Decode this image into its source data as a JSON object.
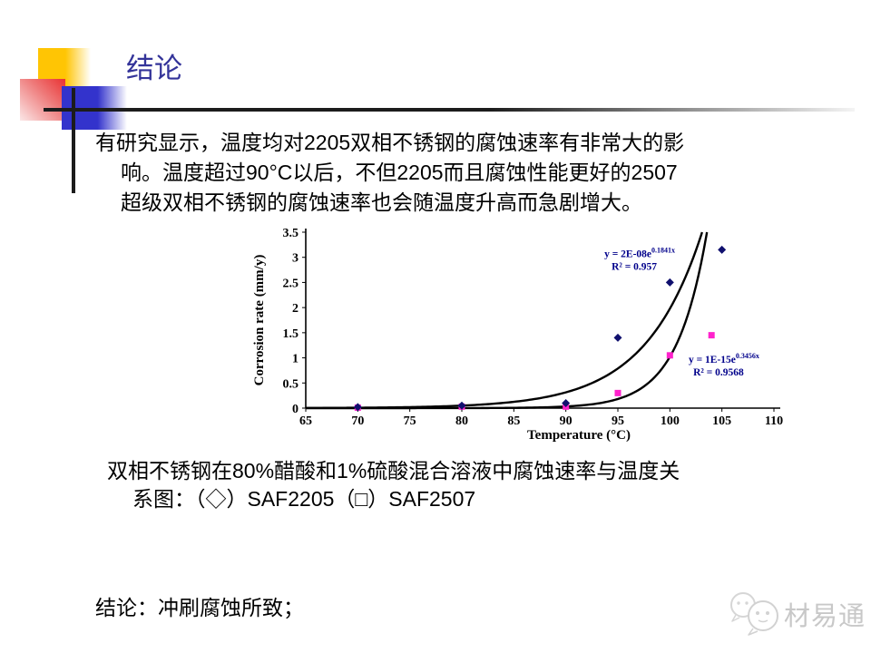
{
  "slide": {
    "title": "结论",
    "paragraph_lines": [
      "有研究显示，温度均对2205双相不锈钢的腐蚀速率有非常大的影",
      "响。温度超过90°C以后，不但2205而且腐蚀性能更好的2507",
      "超级双相不锈钢的腐蚀速率也会随温度升高而急剧增大。"
    ],
    "caption_lines": [
      "双相不锈钢在80%醋酸和1%硫酸混合溶液中腐蚀速率与温度关",
      "系图：（◇）SAF2205（□）SAF2507"
    ],
    "conclusion": "结论：冲刷腐蚀所致；"
  },
  "logo": {
    "text": "材易通"
  },
  "colors": {
    "title": "#333399",
    "accent_yellow": "#FFC504",
    "accent_blue": "#3333CC",
    "accent_red": "#E93232",
    "equation": "#00008B"
  },
  "chart_data": {
    "type": "scatter",
    "title": "",
    "xlabel": "Temperature (°C)",
    "ylabel": "Corrosion rate (mm/y)",
    "xlim": [
      65,
      110
    ],
    "ylim": [
      0,
      3.5
    ],
    "xticks": [
      65,
      70,
      75,
      80,
      85,
      90,
      95,
      100,
      105,
      110
    ],
    "yticks": [
      0,
      0.5,
      1,
      1.5,
      2,
      2.5,
      3,
      3.5
    ],
    "grid": false,
    "legend_position": "none",
    "series": [
      {
        "name": "SAF2205",
        "marker": "diamond",
        "color": "#10106E",
        "points": [
          [
            70,
            0.02
          ],
          [
            80,
            0.05
          ],
          [
            90,
            0.1
          ],
          [
            95,
            1.4
          ],
          [
            100,
            2.5
          ],
          [
            105,
            3.15
          ]
        ],
        "fit": {
          "a": 2e-08,
          "b": 0.1841,
          "eq_base": "y = 2E-08e",
          "eq_exp": "0.1841x",
          "r2": "R² = 0.957",
          "label_x": 97.1,
          "label_y": 3.0
        }
      },
      {
        "name": "SAF2507",
        "marker": "square",
        "color": "#FF22CC",
        "points": [
          [
            70,
            0.01
          ],
          [
            80,
            0.03
          ],
          [
            90,
            0.03
          ],
          [
            95,
            0.3
          ],
          [
            100,
            1.05
          ],
          [
            104,
            1.45
          ]
        ],
        "fit": {
          "a": 1e-15,
          "b": 0.3456,
          "eq_base": "y = 1E-15e",
          "eq_exp": "0.3456x",
          "r2": "R² = 0.9568",
          "label_x": 105.2,
          "label_y": 0.9
        }
      }
    ]
  }
}
